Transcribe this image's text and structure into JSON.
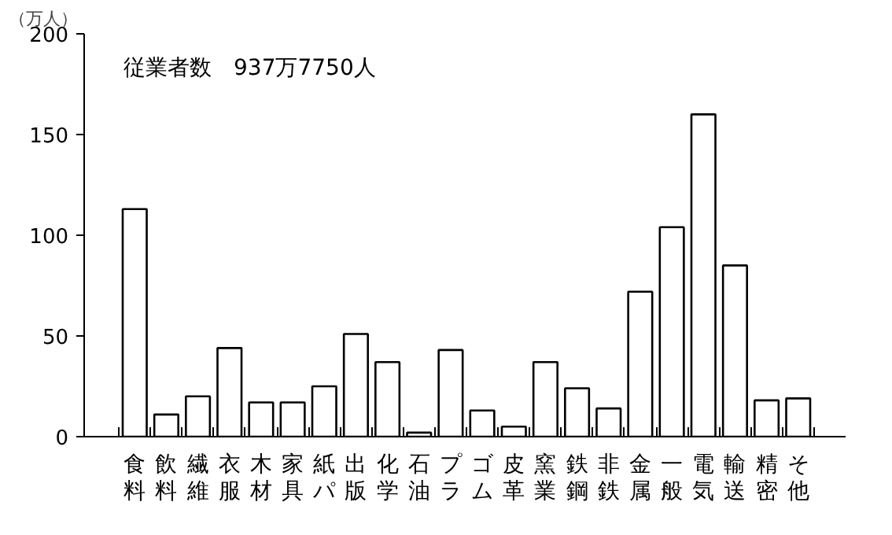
{
  "chart_data": {
    "type": "bar",
    "ylabel": "（万人）",
    "annotations": [
      "従業者数　937万7750人"
    ],
    "categories": [
      "食料",
      "飲料",
      "繊維",
      "衣服",
      "木材",
      "家具",
      "紙パ",
      "出版",
      "化学",
      "石油",
      "プラ",
      "ゴム",
      "皮革",
      "窯業",
      "鉄鋼",
      "非鉄",
      "金属",
      "一般",
      "電気",
      "輸送",
      "精密",
      "そ他"
    ],
    "values": [
      113,
      11,
      20,
      44,
      17,
      17,
      25,
      51,
      37,
      2,
      43,
      13,
      5,
      37,
      24,
      14,
      72,
      104,
      160,
      85,
      18,
      19
    ],
    "color": "#ffffff",
    "ylim": [
      0,
      200
    ],
    "yticks": [
      0,
      50,
      100,
      150,
      200
    ],
    "grid": false
  }
}
